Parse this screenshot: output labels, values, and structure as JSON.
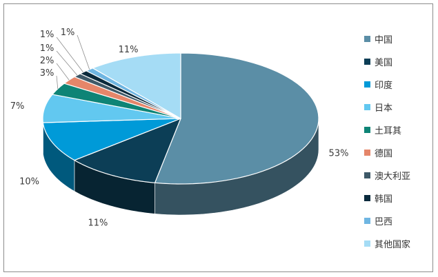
{
  "chart_data": {
    "type": "pie",
    "title": "",
    "legend_position": "right",
    "slices": [
      {
        "label": "中国",
        "value": 53,
        "display": "53%",
        "color": "#5b8ea6"
      },
      {
        "label": "美国",
        "value": 11,
        "display": "11%",
        "color": "#0c3e56"
      },
      {
        "label": "印度",
        "value": 10,
        "display": "10%",
        "color": "#009ad8"
      },
      {
        "label": "日本",
        "value": 7,
        "display": "7%",
        "color": "#62c8f0"
      },
      {
        "label": "土耳其",
        "value": 3,
        "display": "3%",
        "color": "#0e8476"
      },
      {
        "label": "德国",
        "value": 2,
        "display": "2%",
        "color": "#e5866a"
      },
      {
        "label": "澳大利亚",
        "value": 1,
        "display": "1%",
        "color": "#3e5968"
      },
      {
        "label": "韩国",
        "value": 1,
        "display": "1%",
        "color": "#0a2a3c"
      },
      {
        "label": "巴西",
        "value": 1,
        "display": "1%",
        "color": "#6fb6e2"
      },
      {
        "label": "其他国家",
        "value": 11,
        "display": "11%",
        "color": "#a5dcf5"
      }
    ]
  }
}
